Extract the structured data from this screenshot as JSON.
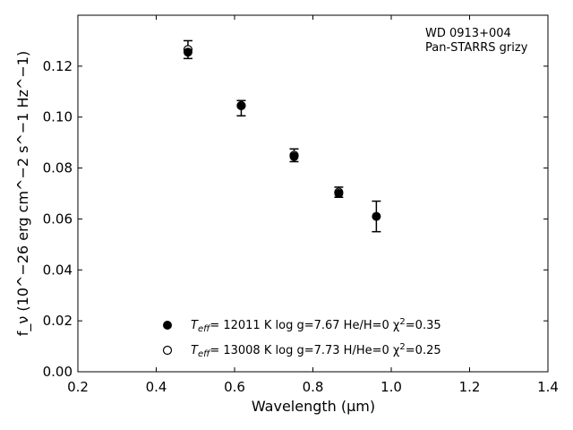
{
  "chart_data": {
    "type": "scatter",
    "xlabel": "Wavelength (μm)",
    "ylabel": "f_ν (10^−26 erg cm^−2 s^−1 Hz^−1)",
    "xlim": [
      0.2,
      1.4
    ],
    "ylim": [
      0.0,
      0.14
    ],
    "xticks": [
      "0.2",
      "0.4",
      "0.6",
      "0.8",
      "1.0",
      "1.2",
      "1.4"
    ],
    "yticks": [
      "0.00",
      "0.02",
      "0.04",
      "0.06",
      "0.08",
      "0.10",
      "0.12"
    ],
    "grid": false,
    "annotations": [
      "WD 0913+004",
      "Pan-STARRS grizy"
    ],
    "observed": {
      "x": [
        0.481,
        0.617,
        0.752,
        0.866,
        0.962
      ],
      "y": [
        0.1265,
        0.1035,
        0.085,
        0.0705,
        0.061
      ],
      "err": [
        0.0035,
        0.003,
        0.0025,
        0.002,
        0.006
      ]
    },
    "series": [
      {
        "label_parts": [
          "T",
          "eff",
          "= 12011 K  log g=7.67  He/H=0  χ",
          "2",
          "=0.35"
        ],
        "marker": "filled-circle",
        "x": [
          0.481,
          0.617,
          0.752,
          0.866,
          0.962
        ],
        "y": [
          0.1255,
          0.1045,
          0.0845,
          0.07,
          0.061
        ]
      },
      {
        "label_parts": [
          "T",
          "eff",
          "= 13008 K  log g=7.73  H/He=0  χ",
          "2",
          "=0.25"
        ],
        "marker": "open-circle",
        "x": [
          0.481,
          0.617,
          0.752,
          0.866
        ],
        "y": [
          0.1265,
          0.1045,
          0.085,
          0.0705
        ]
      }
    ]
  }
}
